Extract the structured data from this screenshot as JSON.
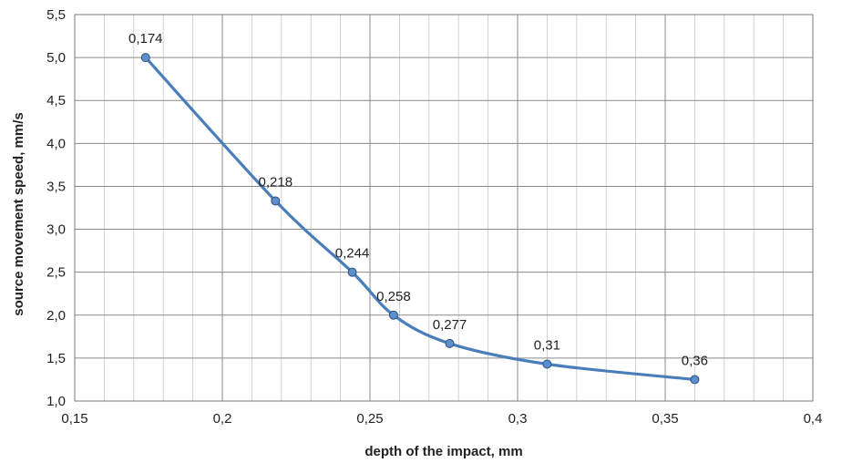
{
  "chart_data": {
    "type": "line",
    "title": "",
    "xlabel": "depth of the impact, mm",
    "ylabel": "source movement speed, mm/s",
    "xlim": [
      0.15,
      0.4
    ],
    "ylim": [
      1.0,
      5.5
    ],
    "x_ticks": [
      "0,15",
      "0,2",
      "0,25",
      "0,3",
      "0,35",
      "0,4"
    ],
    "y_ticks": [
      "1,0",
      "1,5",
      "2,0",
      "2,5",
      "3,0",
      "3,5",
      "4,0",
      "4,5",
      "5,0",
      "5,5"
    ],
    "x_tick_values": [
      0.15,
      0.2,
      0.25,
      0.3,
      0.35,
      0.4
    ],
    "y_tick_values": [
      1.0,
      1.5,
      2.0,
      2.5,
      3.0,
      3.5,
      4.0,
      4.5,
      5.0,
      5.5
    ],
    "grid": true,
    "series": [
      {
        "x": [
          0.174,
          0.218,
          0.244,
          0.258,
          0.277,
          0.31,
          0.36
        ],
        "y": [
          5.0,
          3.33,
          2.5,
          2.0,
          1.67,
          1.43,
          1.25
        ],
        "labels": [
          "0,174",
          "0,218",
          "0,244",
          "0,258",
          "0,277",
          "0,31",
          "0,36"
        ],
        "color": "#4a7ebb",
        "marker_color": "#5b8fcd"
      }
    ]
  }
}
